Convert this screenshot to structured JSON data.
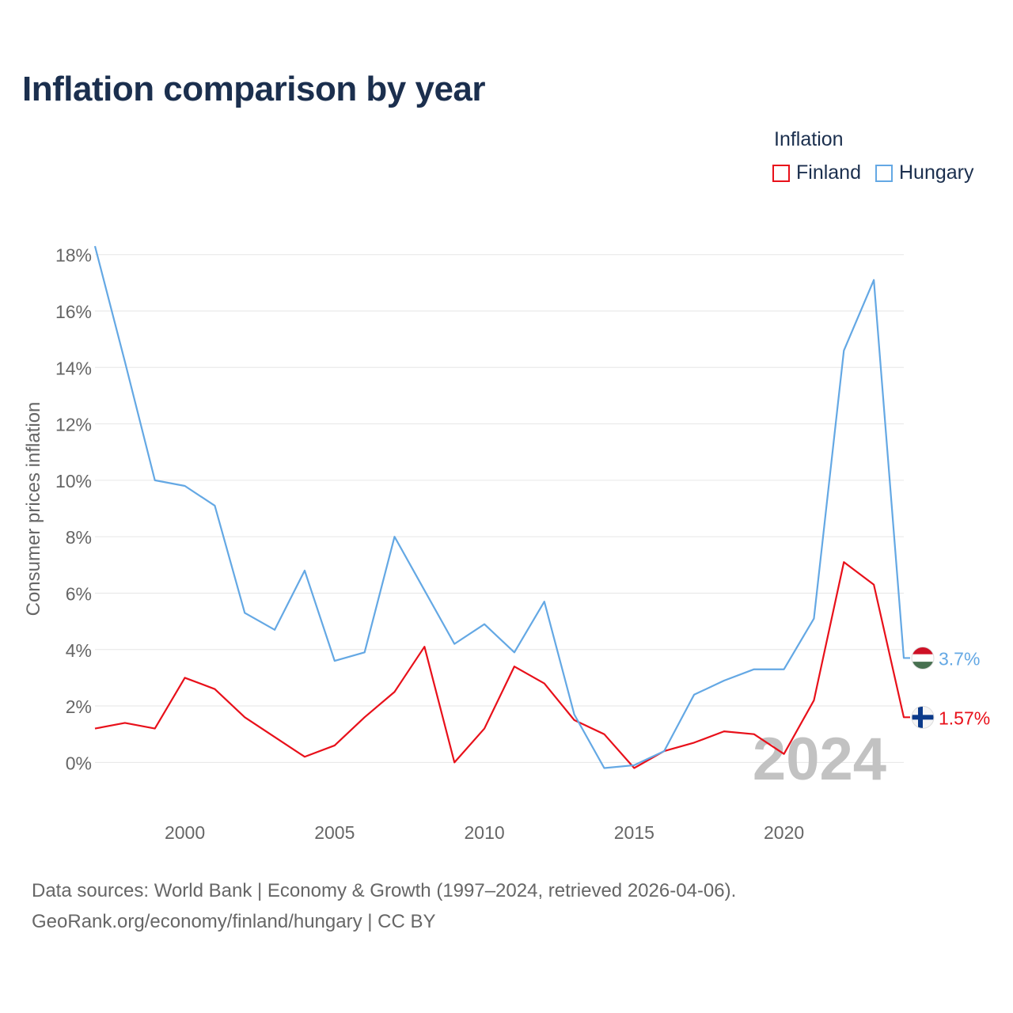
{
  "title": "Inflation comparison by year",
  "legend": {
    "title": "Inflation",
    "items": [
      {
        "label": "Finland",
        "color": "#e8101a"
      },
      {
        "label": "Hungary",
        "color": "#64a8e4"
      }
    ]
  },
  "source": {
    "line1": "Data sources: World Bank | Economy & Growth (1997–2024, retrieved 2026-04-06).",
    "line2": "GeoRank.org/economy/finland/hungary | CC BY"
  },
  "chart_data": {
    "type": "line",
    "title": "Inflation comparison by year",
    "xlabel": "",
    "ylabel": "Consumer prices inflation",
    "year_watermark": "2024",
    "x": [
      1997,
      1998,
      1999,
      2000,
      2001,
      2002,
      2003,
      2004,
      2005,
      2006,
      2007,
      2008,
      2009,
      2010,
      2011,
      2012,
      2013,
      2014,
      2015,
      2016,
      2017,
      2018,
      2019,
      2020,
      2021,
      2022,
      2023,
      2024
    ],
    "xlim": [
      1997,
      2024
    ],
    "ylim": [
      -1.0,
      18.3
    ],
    "x_ticks": [
      2000,
      2005,
      2010,
      2015,
      2020
    ],
    "y_ticks": [
      0,
      2,
      4,
      6,
      8,
      10,
      12,
      14,
      16,
      18
    ],
    "y_tick_labels": [
      "0%",
      "2%",
      "4%",
      "6%",
      "8%",
      "10%",
      "12%",
      "14%",
      "16%",
      "18%"
    ],
    "grid": true,
    "series": [
      {
        "name": "Finland",
        "color": "#e8101a",
        "values": [
          1.2,
          1.4,
          1.2,
          3.0,
          2.6,
          1.6,
          0.9,
          0.2,
          0.6,
          1.6,
          2.5,
          4.1,
          0.0,
          1.2,
          3.4,
          2.8,
          1.5,
          1.0,
          -0.2,
          0.4,
          0.7,
          1.1,
          1.0,
          0.3,
          2.2,
          7.1,
          6.3,
          1.6
        ],
        "end_label": "1.57%"
      },
      {
        "name": "Hungary",
        "color": "#64a8e4",
        "values": [
          18.3,
          14.2,
          10.0,
          9.8,
          9.1,
          5.3,
          4.7,
          6.8,
          3.6,
          3.9,
          8.0,
          6.1,
          4.2,
          4.9,
          3.9,
          5.7,
          1.7,
          -0.2,
          -0.1,
          0.4,
          2.4,
          2.9,
          3.3,
          3.3,
          5.1,
          14.6,
          17.1,
          3.7
        ],
        "end_label": "3.7%"
      }
    ]
  }
}
